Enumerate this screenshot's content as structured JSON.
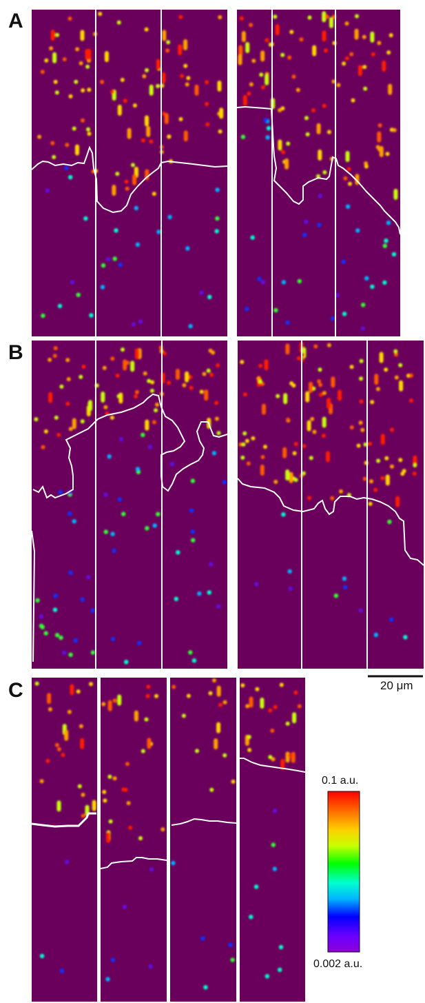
{
  "panel_labels": {
    "a": "A",
    "b": "B",
    "c": "C"
  },
  "scale_bar": {
    "label": "20 μm"
  },
  "colorbar": {
    "max_label": "0.1 a.u.",
    "min_label": "0.002 a.u.",
    "stops": [
      "#ff0000",
      "#ff6a00",
      "#ffd000",
      "#c8ff00",
      "#00ff00",
      "#00ffd0",
      "#00b4ff",
      "#0000ff",
      "#6a00ff",
      "#8c00d8"
    ]
  },
  "colors": {
    "background": "#6b005c",
    "boundary": "#ffffff",
    "spot_palette": [
      "#ff1a00",
      "#ff5a00",
      "#ffa000",
      "#ffd800",
      "#c8ff10",
      "#30ff30",
      "#00ffcc",
      "#00b4ff",
      "#1030ff",
      "#6010e0"
    ]
  }
}
